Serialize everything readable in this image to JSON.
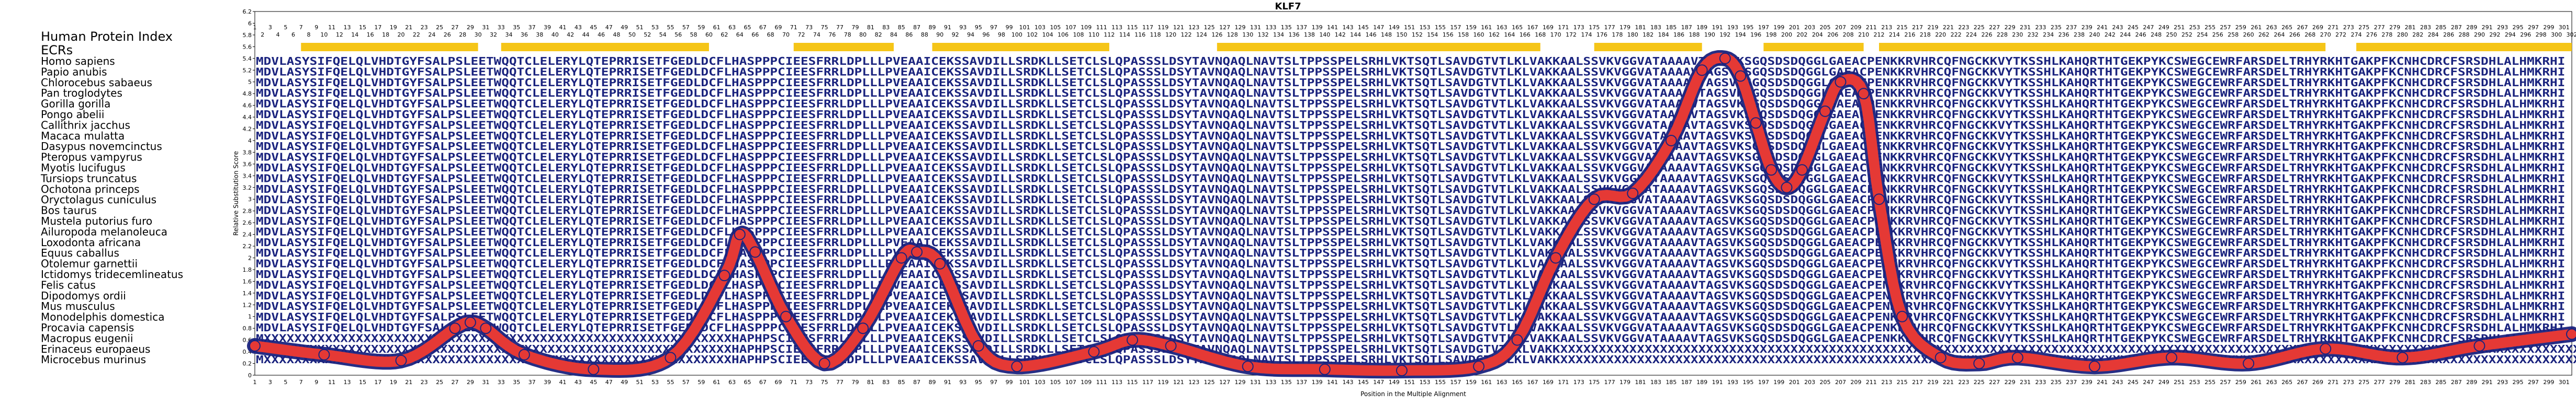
{
  "chart_data": {
    "type": "line",
    "title": "KLF7",
    "xlabel": "Position in the Multiple Alignment",
    "ylabel": "Relative Substitution Score",
    "xlim": [
      1,
      302
    ],
    "ylim": [
      0,
      6.2
    ],
    "ytick_labels": [
      "0",
      "0.2",
      "0.4",
      "0.6",
      "0.8",
      "1",
      "1.2",
      "1.4",
      "1.6",
      "1.8",
      "2",
      "2.2",
      "2.4",
      "2.6",
      "2.8",
      "3",
      "3.2",
      "3.4",
      "3.6",
      "3.8",
      "4",
      "4.2",
      "4.4",
      "4.6",
      "4.8",
      "5",
      "5.2",
      "5.4",
      "5.6",
      "5.8",
      "6",
      "6.2"
    ],
    "series": [
      {
        "color": "#e53935",
        "x": [
          1,
          10,
          20,
          27,
          29,
          31,
          36,
          45,
          55,
          62,
          64,
          66,
          70,
          75,
          80,
          85,
          87,
          90,
          95,
          100,
          110,
          115,
          120,
          130,
          140,
          150,
          160,
          165,
          170,
          175,
          180,
          185,
          189,
          192,
          194,
          196,
          198,
          200,
          202,
          205,
          207,
          210,
          212,
          215,
          220,
          225,
          230,
          240,
          250,
          260,
          270,
          280,
          290,
          302
        ],
        "y": [
          0.5,
          0.35,
          0.25,
          0.8,
          0.9,
          0.8,
          0.35,
          0.1,
          0.3,
          1.7,
          2.4,
          2.1,
          1.0,
          0.2,
          0.8,
          2.0,
          2.1,
          1.9,
          0.5,
          0.15,
          0.4,
          0.6,
          0.5,
          0.15,
          0.1,
          0.08,
          0.15,
          0.6,
          2.0,
          3.0,
          3.1,
          4.0,
          5.2,
          5.4,
          5.1,
          4.3,
          3.5,
          3.2,
          3.5,
          4.5,
          5.0,
          4.8,
          3.0,
          1.0,
          0.3,
          0.2,
          0.3,
          0.15,
          0.3,
          0.2,
          0.45,
          0.3,
          0.5,
          0.7
        ]
      }
    ],
    "xticks_row1": [
      "1",
      "3",
      "5",
      "7",
      "9",
      "11",
      "13",
      "15",
      "17",
      "19",
      "21",
      "23",
      "25",
      "27",
      "29",
      "31",
      "33",
      "35",
      "37",
      "39",
      "41",
      "43",
      "45",
      "47",
      "49",
      "51",
      "53",
      "55",
      "57",
      "59",
      "61",
      "63",
      "65",
      "67",
      "69",
      "71",
      "73",
      "75",
      "77",
      "79",
      "81",
      "83",
      "85",
      "87",
      "89",
      "91",
      "93",
      "95",
      "97",
      "99",
      "101",
      "103",
      "105",
      "107",
      "109",
      "111",
      "113",
      "115",
      "117",
      "119",
      "121",
      "123",
      "125",
      "127",
      "129",
      "131",
      "133",
      "135",
      "137",
      "139",
      "141",
      "143",
      "145",
      "147",
      "149",
      "151",
      "153",
      "155",
      "157",
      "159",
      "161",
      "163",
      "165",
      "167",
      "169",
      "171",
      "173",
      "175",
      "177",
      "179",
      "181",
      "183",
      "185",
      "187",
      "189",
      "191",
      "193",
      "195",
      "197",
      "199",
      "201",
      "203",
      "205",
      "207",
      "209",
      "211",
      "213",
      "215",
      "217",
      "219",
      "221",
      "223",
      "225",
      "227",
      "229",
      "231",
      "233",
      "235",
      "237",
      "239",
      "241",
      "243",
      "245",
      "247",
      "249",
      "251",
      "253",
      "255",
      "257",
      "259",
      "261",
      "263",
      "265",
      "267",
      "269",
      "271",
      "273",
      "275",
      "277",
      "279",
      "281",
      "283",
      "285",
      "287",
      "289",
      "291",
      "293",
      "295",
      "297",
      "299",
      "301"
    ],
    "xticks_row2": [
      "2",
      "4",
      "6",
      "8",
      "10",
      "12",
      "14",
      "16",
      "18",
      "20",
      "22",
      "24",
      "26",
      "28",
      "30",
      "32",
      "34",
      "36",
      "38",
      "40",
      "42",
      "44",
      "46",
      "48",
      "50",
      "52",
      "54",
      "56",
      "58",
      "60",
      "62",
      "64",
      "66",
      "68",
      "70",
      "72",
      "74",
      "76",
      "78",
      "80",
      "82",
      "84",
      "86",
      "88",
      "90",
      "92",
      "94",
      "96",
      "98",
      "100",
      "102",
      "104",
      "106",
      "108",
      "110",
      "112",
      "114",
      "116",
      "118",
      "120",
      "122",
      "124",
      "126",
      "128",
      "130",
      "132",
      "134",
      "136",
      "138",
      "140",
      "142",
      "144",
      "146",
      "148",
      "150",
      "152",
      "154",
      "156",
      "158",
      "160",
      "162",
      "164",
      "166",
      "168",
      "170",
      "172",
      "174",
      "176",
      "178",
      "180",
      "182",
      "184",
      "186",
      "188",
      "190",
      "192",
      "194",
      "196",
      "198",
      "200",
      "202",
      "204",
      "206",
      "208",
      "210",
      "212",
      "214",
      "216",
      "218",
      "220",
      "222",
      "224",
      "226",
      "228",
      "230",
      "232",
      "234",
      "236",
      "238",
      "240",
      "242",
      "244",
      "246",
      "248",
      "250",
      "252",
      "254",
      "256",
      "258",
      "260",
      "262",
      "264",
      "266",
      "268",
      "270",
      "272",
      "274",
      "276",
      "278",
      "280",
      "282",
      "284",
      "286",
      "288",
      "290",
      "292",
      "294",
      "296",
      "298",
      "300",
      "302"
    ],
    "ecr_segments": [
      [
        7,
        30
      ],
      [
        33,
        60
      ],
      [
        71,
        84
      ],
      [
        89,
        112
      ],
      [
        126,
        168
      ],
      [
        175,
        189
      ],
      [
        197,
        210
      ],
      [
        212,
        270
      ],
      [
        274,
        302
      ]
    ],
    "ecr_color": "#f5c518",
    "species_header": "Human Protein Index",
    "ecr_label": "ECRs",
    "species": [
      "Homo sapiens",
      "Papio anubis",
      "Chlorocebus sabaeus",
      "Pan troglodytes",
      "Gorilla gorilla",
      "Pongo abelii",
      "Callithrix jacchus",
      "Macaca mulatta",
      "Dasypus novemcinctus",
      "Pteropus vampyrus",
      "Myotis lucifugus",
      "Tursiops truncatus",
      "Ochotona princeps",
      "Oryctolagus cuniculus",
      "Bos taurus",
      "Mustela putorius furo",
      "Ailuropoda melanoleuca",
      "Loxodonta africana",
      "Equus caballus",
      "Otolemur garnettii",
      "Ictidomys tridecemlineatus",
      "Felis catus",
      "Dipodomys ordii",
      "Mus musculus",
      "Monodelphis domestica",
      "Procavia capensis",
      "Macropus eugenii",
      "Erinaceus europaeus",
      "Microcebus murinus"
    ],
    "sequences": [
      "MDVLASYSIFQELQLVHDTGYFSALPSLEETWQQTCLELERYLQTEPRRISETFGEDLDCFLHASPPPCIEESFRRLDPLLLPVEAAICEKSSAVDILLSRDKLLSETCLSLQPASSSLDSYTAVNQAQLNAVTSLTPPSSPELSRHLVKTSQTLSAVDGTVTLKLVAKKAALSSVKVGGVATAAAAVTAGSVKSGQSDSDQGGLGAEACPENKKRVHRCQFNGCKKVYTKSSHLKAHQRTHTGEKPYKCSWEGCEWRFARSDELTRHYRKHTGAKPFKCNHCDRCFSRSDHLALHMKRHI",
      "MDVLASYSIFQELQLVHDTGYFSALPSLEETWQQTCLELERYLQTEPRRISETFGEDLDCFLHASPPPCIEESFRRLDPLLLPVEAAICEKSSAVDILLSRDKLLSETCLSLQPASSSLDSYTAVNQAQLNAVTSLTPPSSPELSRHLVKTSQTLSAVDGTVTLKLVAKKAALSSVKVGGVATAAAAVTAGSVKSGQSDSDQGGLGAEACPENKKRVHRCQFNGCKKVYTKSSHLKAHQRTHTGEKPYKCSWEGCEWRFARSDELTRHYRKHTGAKPFKCNHCDRCFSRSDHLALHMKRHI",
      "MDVLASYSIFQELQLVHDTGYFSALPSLEETWQQTCLELERYLQTEPRRISETFGEDLDCFLHASPPPCIEESFRRLDPLLLPVEAAICEKSSAVDILLSRDKLLSETCLSLQPASSSLDSYTAVNQAQLNAVTSLTPPSSPELSRHLVKTSQTLSAVDGTVTLKLVAKKAALSSVKVGGVATAAAAVTAGSVKSGQSDSDQGGLGAEACPENKKRVHRCQFNGCKKVYTKSSHLKAHQRTHTGEKPYKCSWEGCEWRFARSDELTRHYRKHTGAKPFKCNHCDRCFSRSDHLALHMKRHI",
      "MDVLASYSIFQELQLVHDTGYFSALPSLEETWQQTCLELERYLQTEPRRISETFGEDLDCFLHASPPPCIEESFRRLDPLLLPVEAAICEKSSAVDILLSRDKLLSETCLSLQPASSSLDSYTAVNQAQLNAVTSLTPPSSPELSRHLVKTSQTLSAVDGTVTLKLVAKKAALSSVKVGGVATAAAAVTAGSVKSGQSDSDQGGLGAEACPENKKRVHRCQFNGCKKVYTKSSHLKAHQRTHTGEKPYKCSWEGCEWRFARSDELTRHYRKHTGAKPFKCNHCDRCFSRSDHLALHMKRHI",
      "MDVLASYSIFQELQLVHDTGYFSALPSLEETWQQTCLELERYLQTEPRRISETFGEDLDCFLHASPPPCIEESFRRLDPLLLPVEAAICEKSSAVDILLSRDKLLSETCLSLQPASSSLDSYTAVNQAQLNAVTSLTPPSSPELSRHLVKTSQTLSAVDGTVTLKLVAKKAALSSVKVGGVATAAAAVTAGSVKSGQSDSDQGGLGAEACPENKKRVHRCQFNGCKKVYTKSSHLKAHQRTHTGEKPYKCSWEGCEWRFARSDELTRHYRKHTGAKPFKCNHCDRCFSRSDHLALHMKRHI",
      "MDVLASYSIFQELQLVHDTGYFSALPSLEETWQQTCLELERYLQTEPRRISETFGEDLDCFLHASPPPCIEESFRRLDPLLLPVEAAICEKSSAVDILLSRDKLLSETCLSLQPASSSLDSYTAVNQAQLNAVTSLTPPSSPELSRHLVKTSQTLSAVDGTVTLKLVAKKAALSSVKVGGVATAAAAVTAGSVKSGQSDSDQGGLGAEACPENKKRVHRCQFNGCKKVYTKSSHLKAHQRTHTGEKPYKCSWEGCEWRFARSDELTRHYRKHTGAKPFKCNHCDRCFSRSDHLALHMKRHI",
      "MDVLASYSIFQELQLVHDTGYFSALPSLEETWQQTCLELERYLQTEPRRISETFGEDLDCFLHASPPPCIEESFRRLDPLLLPVEAAICEKSSAVDILLSRDKLLSETCLSLQPASSSLDSYTAVNQAQLNAVTSLTPPSSPELSRHLVKTSQTLSAVDGTVTLKLVAKKAALSSVKVGGVATAAAAVTAGSVKSGQSDSDQGGLGAEACPENKKRVHRCQFNGCKKVYTKSSHLKAHQRTHTGEKPYKCSWEGCEWRFARSDELTRHYRKHTGAKPFKCNHCDRCFSRSDHLALHMKRHI",
      "MDVLASYSIFQELQLVHDTGYFSALPSLEETWQQTCLELERYLQTEPRRISETFGEDLDCFLHASPPPCIEESFRRLDPLLLPVEAAICEKSSAVDILLSRDKLLSETCLSLQPASSSLDSYTAVNQAQLNAVTSLTPPSSPELSRHLVKTSQTLSAVDGTVTLKLVAKKAALSSVKVGGVATAAAAVTAGSVKSGQSDSDQGGLGAEACPENKKRVHRCQFNGCKKVYTKSSHLKAHQRTHTGEKPYKCSWEGCEWRFARSDELTRHYRKHTGAKPFKCNHCDRCFSRSDHLALHMKRHI",
      "MDVLASYSIFQELQLVHDTGYFSALPSLEETWQQTCLELERYLQTEPRRISETFGEDLDCFLHASPPPCIEESFRRLDPLLLPVEAAICEKSSAVDILLSRDKLLSETCLSLQPASSSLDSYTAVNQAQLNAVTSLTPPSSPELSRHLVKTSQTLSAVDGTVTLKLVAKKAALSSVKVGGVATAAAAVTAGSVKSGQSDSDQGGLGAEACPENKKRVHRCQFNGCKKVYTKSSHLKAHQRTHTGEKPYKCSWEGCEWRFARSDELTRHYRKHTGAKPFKCNHCDRCFSRSDHLALHMKRHI",
      "MDVLASYSIFQELQLVHDTGYFSALPSLEETWQQTCLELERYLQTEPRRISETFGEDLDCFLHASPPPCIEESFRRLDPLLLPVEAAICEKSSAVDILLSRDKLLSETCLSLQPASSSLDSYTAVNQAQLNAVTSLTPPSSPELSRHLVKTSQTLSAVDGTVTLKLVAKKAALSSVKVGGVATAAAAVTAGSVKSGQSDSDQGGLGAEACPENKKRVHRCQFNGCKKVYTKSSHLKAHQRTHTGEKPYKCSWEGCEWRFARSDELTRHYRKHTGAKPFKCNHCDRCFSRSDHLALHMKRHI",
      "MDVLASYSIFQELQLVHDTGYFSALPSLEETWQQTCLELERYLQTEPRRISETFGEDLDCFLHASPPPCIEESFRRLDPLLLPVEAAICEKSSAVDILLSRDKLLSETCLSLQPASSSLDSYTAVNQAQLNAVTSLTPPSSPELSRHLVKTSQTLSAVDGTVTLKLVAKKAALSSVKVGGVATAAAAVTAGSVKSGQSDSDQGGLGAEACPENKKRVHRCQFNGCKKVYTKSSHLKAHQRTHTGEKPYKCSWEGCEWRFARSDELTRHYRKHTGAKPFKCNHCDRCFSRSDHLALHMKRHI",
      "MDVLASYSIFQELQLVHDTGYFSALPSLEETWQQTCLELERYLQTEPRRISETFGEDLDCFLHASPPPCIEESFRRLDPLLLPVEAAICEKSSAVDILLSRDKLLSETCLSLQPASSSLDSYTAVNQAQLNAVTSLTPPSSPELSRHLVKTSQTLSAVDGTVTLKLVAKKAALSSVKVGGVATAAAAVTAGSVKSGQSDSDQGGLGAEACPENKKRVHRCQFNGCKKVYTKSSHLKAHQRTHTGEKPYKCSWEGCEWRFARSDELTRHYRKHTGAKPFKCNHCDRCFSRSDHLALHMKRHI",
      "MDVLASYSIFQELQLVHDTGYFSALPSLEETWQQTCLELERYLQTEPRRISETFGEDLDCFLHASPPPCIEESFRRLDPLLLPVEAAICEKSSAVDILLSRDKLLSETCLSLQPASSSLDSYTAVNQAQLNAVTSLTPPSSPELSRHLVKTSQTLSAVDGTVTLKLVAKKAALSSVKVGGVATAAAAVTAGSVKSGQSDSDQGGLGAEACPENKKRVHRCQFNGCKKVYTKSSHLKAHQRTHTGEKPYKCSWEGCEWRFARSDELTRHYRKHTGAKPFKCNHCDRCFSRSDHLALHMKRHI",
      "MDVLASYSIFQELQLVHDTGYFSALPSLEETWQQTCLELERYLQTEPRRISETFGEDLDCFLHASPPPCIEESFRRLDPLLLPVEAAICEKSSAVDILLSRDKLLSETCLSLQPASSSLDSYTAVNQAQLNAVTSLTPPSSPELSRHLVKTSQTLSAVDGTVTLKLVAKKAALSSVKVGGVATAAAAVTAGSVKSGQSDSDQGGLGAEACPENKKRVHRCQFNGCKKVYTKSSHLKAHQRTHTGEKPYKCSWEGCEWRFARSDELTRHYRKHTGAKPFKCNHCDRCFSRSDHLALHMKRHI",
      "MDVLASYSIFQELQLVHDTGYFSALPSLEETWQQTCLELERYLQTEPRRISETFGEDLDCFLHASPPPCIEESFRRLDPLLLPVEAAICEKSSAVDILLSRDKLLSETCLSLQPASSSLDSYTAVNQAQLNAVTSLTPPSSPELSRHLVKTSQTLSAVDGTVTLKLVAKKAALSSVKVGGVATAAAAVTAGSVKSGQSDSDQGGLGAEACPENKKRVHRCQFNGCKKVYTKSSHLKAHQRTHTGEKPYKCSWEGCEWRFARSDELTRHYRKHTGAKPFKCNHCDRCFSRSDHLALHMKRHI",
      "MDVLASYSIFQELQLVHDTGYFSALPSLEETWQQTCLELERYLQTEPRRISETFGEDLDCFLHASPPPCIEESFRRLDPLLLPVEAAICEKSSAVDILLSRDKLLSETCLSLQPASSSLDSYTAVNQAQLNAVTSLTPPSSPELSRHLVKTSQTLSAVDGTVTLKLVAKKAALSSVKVGGVATAAAAVTAGSVKSGQSDSDQGGLGAEACPENKKRVHRCQFNGCKKVYTKSSHLKAHQRTHTGEKPYKCSWEGCEWRFARSDELTRHYRKHTGAKPFKCNHCDRCFSRSDHLALHMKRHI",
      "MDVLASYSIFQELQLVHDTGYFSALPSLEETWQQTCLELERYLQTEPRRISETFGEDLDCFLHASPPPCIEESFRRLDPLLLPVEAAICEKSSAVDILLSRDKLLSETCLSLQPASSSLDSYTAVNQAQLNAVTSLTPPSSPELSRHLVKTSQTLSAVDGTVTLKLVAKKAALSSVKVGGVATAAAAVTAGSVKSGQSDSDQGGLGAEACPENKKRVHRCQFNGCKKVYTKSSHLKAHQRTHTGEKPYKCSWEGCEWRFARSDELTRHYRKHTGAKPFKCNHCDRCFSRSDHLALHMKRHI",
      "MDVLASYSIFQELQLVHDTGYFSALPSLEETWQQTCLELERYLQTEPRRISETFGEDLDCFLHASPPPCIEESFRRLDPLLLPVEAAICEKSSAVDILLSRDKLLSETCLSLQPASSSLDSYTAVNQAQLNAVTSLTPPSSPELSRHLVKTSQTLSAVDGTVTLKLVAKKAALSSVKVGGVATAAAAVTAGSVKSGQSDSDQGGLGAEACPENKKRVHRCQFNGCKKVYTKSSHLKAHQRTHTGEKPYKCSWEGCEWRFARSDELTRHYRKHTGAKPFKCNHCDRCFSRSDHLALHMKRHI",
      "MDVLASYSIFQELQLVHDTGYFSALPSLEETWQQTCLELERYLQTEPRRISETFGEDLDCFLHASPPPCIEESFRRLDPLLLPVEAAICEKSSAVDILLSRDKLLSETCLSLQPASSSLDSYTAVNQAQLNAVTSLTPPSSPELSRHLVKTSQTLSAVDGTVTLKLVAKKAALSSVKVGGVATAAAAVTAGSVKSGQSDSDQGGLGAEACPENKKRVHRCQFNGCKKVYTKSSHLKAHQRTHTGEKPYKCSWEGCEWRFARSDELTRHYRKHTGAKPFKCNHCDRCFSRSDHLALHMKRHI",
      "MDVLASYSIFQELQLVHDTGYFSALPSLEETWQQTCLELERYLQTEPRRISETFGEDLDCFLHASPPPCIEESFRRLDPLLLPVEAAICEKSSAVDILLSRDKLLSETCLSLQPASSSLDSYTAVNQAQLNAVTSLTPPSSPELSRHLVKTSQTLSAVDGTVTLKLVAKKAALSSVKVGGVATAAAAVTAGSVKSGQSDSDQGGLGAEACPENKKRVHRCQFNGCKKVYTKSSHLKAHQRTHTGEKPYKCSWEGCEWRFARSDELTRHYRKHTGAKPFKCNHCDRCFSRSDHLALHMKRHI",
      "MDVLASYSIFQELQLVHDTGYFSALPSLEETWQQTCLELERYLQTEPRRISETFGEDLDCFLHASPPPCIEESFRRLDPLLLPVEAAICEKSSAVDILLSRDKLLSETCLSLQPASSSLDSYTAVNQAQLNAVTSLTPPSSPELSRHLVKTSQTLSAVDGTVTLKLVAKKAALSSVKVGGVATAAAAVTAGSVKSGQSDSDQGGLGAEACPENKKRVHRCQFNGCKKVYTKSSHLKAHQRTHTGEKPYKCSWEGCEWRFARSDELTRHYRKHTGAKPFKCNHCDRCFSRSDHLALHMKRHI",
      "MDVLASYSIFQELQLVHDTGYFSALPSLEETWQQTCLELERYLQTEPRRISETFGEDLDCFLHASPPPCIEESFRRLDPLLLPVEAAICEKSSAVDILLSRDKLLSETCLSLQPASSSLDSYTAVNQAQLNAVTSLTPPSSPELSRHLVKTSQTLSAVDGTVTLKLVAKKAALSSVKVGGVATAAAAVTAGSVKSGQSDSDQGGLGAEACPENKKRVHRCQFNGCKKVYTKSSHLKAHQRTHTGEKPYKCSWEGCEWRFARSDELTRHYRKHTGAKPFKCNHCDRCFSRSDHLALHMKRHI",
      "MDVLASYSIFQELQLVHDTGYFSALPSLEETWQQTCLELERYLQTEPRRISETFGEDLDCFLHASPPPCIEESFRRLDPLLLPVEAAICEKSSAVDILLSRDKLLSETCLSLQPASSSLDSYTAVNQAQLNAVTSLTPPSSPELSRHLVKTSQTLSAVDGTVTLKLVAKKAALSSVKVGGVATAAAAVTAGSVKSGQSDSDQGGLGAEACPENKKRVHRCQFNGCKKVYTKSSHLKAHQRTHTGEKPYKCSWEGCEWRFARSDELTRHYRKHTGAKPFKCNHCDRCFSRSDHLALHMKRHI",
      "MDVLASYSIFQELQLVHDTGYFSALPSLEETWQQTCLELERYLQTEPRRISETFGEDLDCFLHASPPPCIEESFRRLDPLLLPVEAAICEKSSAVDILLSRDKLLSETCLSLQPASSSLDSYTAVNQAQLNAVTSLTPPSSPELSRHLVKTSQTLSAVDGTVTLKLVAKKAALSSVKVGGVATAAAAVTAGSVKSGQSDSDQGGLGAEACPENKKRVHRCQFNGCKKVYTKSSHLKAHQRTHTGEKPYKCSWEGCEWRFARSDELTRHYRKHTGAKPFKCNHCDRCFSRSDHLALHMKRHI",
      "MDVLASYSIFQELQLVHDTGYFSALPSLEETWQQTCLELERYLQTEPRRISETFGEDLDCFLHASPPPCIEESFRRLDPLLLPVEAAICEKSSAVDILLSRDKLLSETCLSLQPASSSLDSYTAVNQAQLNAVTSLTPPSSPELSRHLVKTSQTLSAVDGTVTLKLVAKKAALSSVKVGGVATAAAAVTAGSVKSGQSDSDQGGLGAEACPENKKRVHRCQFNGCKKVYTKSSHLKAHQRTHTGEKPYKCSWEGCEWRFARSDELTRHYRKHTGAKPFKCNHCDRCFSRSDHLALHMKRHI",
      "MDVLASYSIFQELQLVHDTGYFSALPSLEETWQQTCLELERYLQTEPRRISETFGEDLDCFLHASPPPCIEESFRRLDPLLLPVEAAICEKSSAVDILLSRDKLLSETCLSLQPASSSLDSYTAVNQAQLNAVTSLTPPSSPELSRHLVKTSQTLSAVDGTVTLKLVAKKAALSSVKVGGVATAAAAVTAGSVKSGQSDSDQGGLGAEACPENKKRVHRCQFNGCKKVYTKSSHLKAHQRTHTGEKPYKCSWEGCEWRFARSDELTRHYRKHTGAKPFKCNHCDRCFSRSDHLALHMKRHI",
      "MXXXXXXXXXXXXXXXXXXXXXXXXXXXXXXXXXXXXXXXXXXXXXXXXXXXXXXXXXXXXXHAPHPSCIEESFRRLDPLLLPVEAAICEKSSAVDILLSRDKLLSETCLSLQPASSSLDSYTAVNQAQLNAVTSLTPPSSPELSRHLVKTSQTLSAVDGTVTLKLVAKKAALSSVKVGGVATAAAAVTAGSVKSGQSDSDQGGLGAEACPENKKRVHRCQFNGCKKVYTKSSHLKAHQRTHTGEKPYKCSWEGCEWRFARSDELTRHYRKHTGAKPFKCNHCDRCFSRSDHLALHMKRHI",
      "MXXXXXXXXXXXXXXXXXXXXXXXXXXXXXXXXXXXXXXXXXXXXXXXXXXXXXXXXXXXXXHAPHPSCIEESFRRLDPLLLPVEAAICEKSSAVDILLSRDKLLSETCLSLQPASSSLDSYTAVNQAQLNAVTSLTPPSSPELSRHLVKTSQTLSAVDGTVTLKLVAKKXXXXXXXXXXXXXXXXXXXXXXXXXXXXXXXXXXXXXXXXXXXXXXXXXXXXXXXXXXXXXXXXXXXXXXXXXXXXXXXXXXXXXXXXXXXXXXXXXXXXXXXXXXXXXXXXXXXXXXXXXXXXXXXXXXXXX",
      "MXXXXXXXXXXXXXXXXXXXXXXXXXXXXXXXXXXXXXXXXXXXXXXXXXXXXXXXXXXXXXHAPHPSCIEESFRRLDPLLLPVEAAICEKSSAVDILLSRDKLLSETCLSLQPASSSLDSYTAVNQAQLNAVTSLTPPSSPELSRHLVKTSQTLSAVDGTVTLKLVAKKXXXXXXXXXXXXXXXXXXXXXXXXXXXXXXXXXXXXXXXXXXXXXXXXXXXXXXXXXXXXXXXXXXXXXXXXXXXXXXXXXXXXXXXXXXXXXXXXXXXXXXXXXXXXXXXXXXXXXXXXXXXXXXXXXXXXX"
    ]
  }
}
